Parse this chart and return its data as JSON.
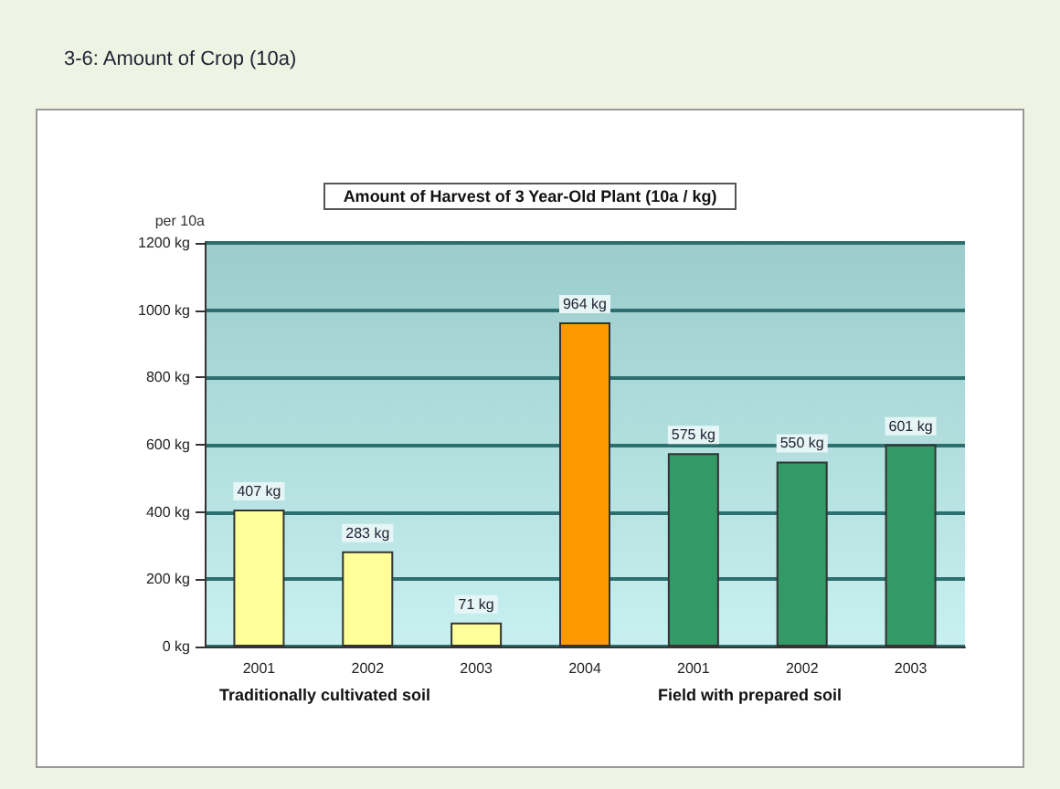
{
  "chart_data": {
    "type": "bar",
    "title": "3-6: Amount of Crop (10a)",
    "subtitle": "Amount of Harvest of 3 Year-Old Plant (10a / kg)",
    "ylabel": "per 10a",
    "categories": [
      "2001",
      "2002",
      "2003",
      "2004",
      "2001",
      "2002",
      "2003"
    ],
    "values": [
      407,
      283,
      71,
      964,
      575,
      550,
      601
    ],
    "colors": [
      "#ffff99",
      "#ffff99",
      "#ffff99",
      "#ff9900",
      "#339966",
      "#339966",
      "#339966"
    ],
    "value_labels": [
      "407 kg",
      "283 kg",
      "71 kg",
      "964 kg",
      "575 kg",
      "550 kg",
      "601 kg"
    ],
    "ylim": [
      0,
      1200
    ],
    "yticks": [
      {
        "value": 0,
        "label": "0 kg"
      },
      {
        "value": 200,
        "label": "200 kg"
      },
      {
        "value": 400,
        "label": "400 kg"
      },
      {
        "value": 600,
        "label": "600 kg"
      },
      {
        "value": 800,
        "label": "800 kg"
      },
      {
        "value": 1000,
        "label": "1000 kg"
      },
      {
        "value": 1200,
        "label": "1200 kg"
      }
    ],
    "grid": "y",
    "annotations": [
      "Traditionally cultivated soil",
      "Field with prepared soil"
    ]
  }
}
